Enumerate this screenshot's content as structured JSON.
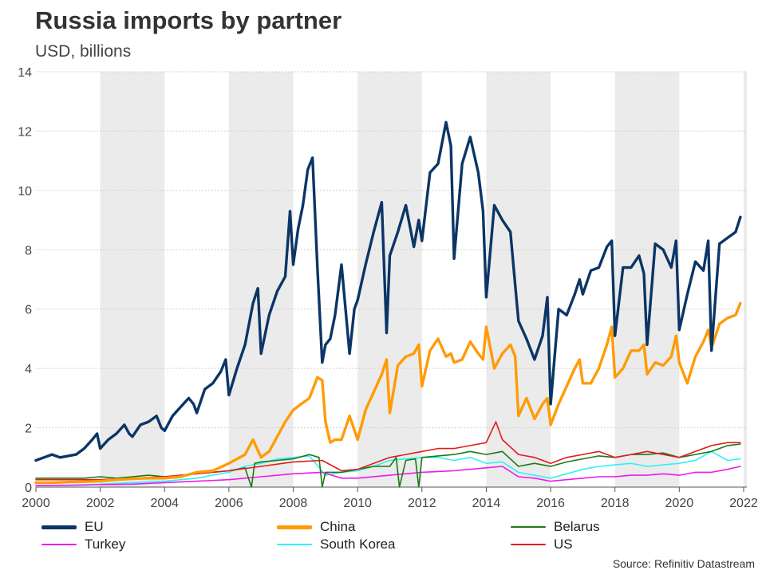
{
  "header": {
    "title": "Russia imports by partner",
    "subtitle": "USD, billions"
  },
  "source": "Source: Refinitiv Datastream",
  "colors": {
    "EU": "#0b3566",
    "China": "#ff9b05",
    "Belarus": "#1a7a12",
    "Turkey": "#ee18ee",
    "South Korea": "#2ef2f5",
    "US": "#e31a1c",
    "shade": "#ebebeb",
    "grid": "#d0d0d0"
  },
  "chart_data": {
    "type": "line",
    "title": "Russia imports by partner",
    "subtitle": "USD, billions",
    "xlabel": "",
    "ylabel": "",
    "xlim": [
      2000,
      2022.1
    ],
    "ylim": [
      0,
      14
    ],
    "yticks": [
      0,
      2,
      4,
      6,
      8,
      10,
      12,
      14
    ],
    "xticks": [
      2000,
      2002,
      2004,
      2006,
      2008,
      2010,
      2012,
      2014,
      2016,
      2018,
      2020,
      2022
    ],
    "shaded_bands": [
      [
        2002,
        2004
      ],
      [
        2006,
        2008
      ],
      [
        2010,
        2012
      ],
      [
        2014,
        2016
      ],
      [
        2018,
        2020
      ],
      [
        2022,
        2022.1
      ]
    ],
    "legend_position": "bottom",
    "series": [
      {
        "name": "EU",
        "x": [
          2000.0,
          2000.25,
          2000.5,
          2000.75,
          2001.0,
          2001.25,
          2001.5,
          2001.75,
          2001.9,
          2002.0,
          2002.25,
          2002.5,
          2002.75,
          2002.9,
          2003.0,
          2003.25,
          2003.5,
          2003.75,
          2003.9,
          2004.0,
          2004.25,
          2004.5,
          2004.75,
          2004.9,
          2005.0,
          2005.25,
          2005.5,
          2005.75,
          2005.9,
          2006.0,
          2006.25,
          2006.5,
          2006.75,
          2006.9,
          2007.0,
          2007.25,
          2007.5,
          2007.75,
          2007.9,
          2008.0,
          2008.15,
          2008.3,
          2008.45,
          2008.6,
          2008.75,
          2008.9,
          2009.0,
          2009.15,
          2009.3,
          2009.5,
          2009.75,
          2009.9,
          2010.0,
          2010.25,
          2010.5,
          2010.75,
          2010.9,
          2011.0,
          2011.25,
          2011.5,
          2011.75,
          2011.9,
          2012.0,
          2012.25,
          2012.5,
          2012.75,
          2012.9,
          2013.0,
          2013.25,
          2013.5,
          2013.75,
          2013.9,
          2014.0,
          2014.25,
          2014.5,
          2014.75,
          2014.9,
          2015.0,
          2015.25,
          2015.5,
          2015.75,
          2015.9,
          2016.0,
          2016.25,
          2016.5,
          2016.75,
          2016.9,
          2017.0,
          2017.25,
          2017.5,
          2017.75,
          2017.9,
          2018.0,
          2018.25,
          2018.5,
          2018.75,
          2018.9,
          2019.0,
          2019.25,
          2019.5,
          2019.75,
          2019.9,
          2020.0,
          2020.25,
          2020.5,
          2020.75,
          2020.9,
          2021.0,
          2021.25,
          2021.5,
          2021.75,
          2021.9
        ],
        "values": [
          0.9,
          1.0,
          1.1,
          1.0,
          1.05,
          1.1,
          1.3,
          1.6,
          1.8,
          1.3,
          1.6,
          1.8,
          2.1,
          1.8,
          1.7,
          2.1,
          2.2,
          2.4,
          2.0,
          1.9,
          2.4,
          2.7,
          3.0,
          2.8,
          2.5,
          3.3,
          3.5,
          3.9,
          4.3,
          3.1,
          4.0,
          4.8,
          6.2,
          6.7,
          4.5,
          5.8,
          6.6,
          7.1,
          9.3,
          7.5,
          8.7,
          9.5,
          10.7,
          11.1,
          7.4,
          4.2,
          4.8,
          5.0,
          5.8,
          7.5,
          4.5,
          6.0,
          6.3,
          7.5,
          8.6,
          9.6,
          5.2,
          7.8,
          8.6,
          9.5,
          8.1,
          9.0,
          8.3,
          10.6,
          10.9,
          12.3,
          11.5,
          7.7,
          10.9,
          11.8,
          10.6,
          9.3,
          6.4,
          9.5,
          9.0,
          8.6,
          6.8,
          5.6,
          5.0,
          4.3,
          5.1,
          6.4,
          2.8,
          6.0,
          5.8,
          6.5,
          7.0,
          6.5,
          7.3,
          7.4,
          8.1,
          8.3,
          5.1,
          7.4,
          7.4,
          7.8,
          7.2,
          4.8,
          8.2,
          8.0,
          7.4,
          8.3,
          5.3,
          6.5,
          7.6,
          7.3,
          8.3,
          4.6,
          8.2,
          8.4,
          8.6,
          9.1
        ]
      },
      {
        "name": "China",
        "x": [
          2000.0,
          2000.5,
          2001.0,
          2001.5,
          2002.0,
          2002.5,
          2003.0,
          2003.5,
          2004.0,
          2004.5,
          2005.0,
          2005.5,
          2006.0,
          2006.5,
          2006.75,
          2007.0,
          2007.25,
          2007.5,
          2007.75,
          2008.0,
          2008.25,
          2008.5,
          2008.75,
          2008.9,
          2009.0,
          2009.15,
          2009.3,
          2009.5,
          2009.75,
          2010.0,
          2010.25,
          2010.5,
          2010.75,
          2010.9,
          2011.0,
          2011.25,
          2011.5,
          2011.75,
          2011.9,
          2012.0,
          2012.25,
          2012.5,
          2012.75,
          2012.9,
          2013.0,
          2013.25,
          2013.5,
          2013.75,
          2013.9,
          2014.0,
          2014.25,
          2014.5,
          2014.75,
          2014.9,
          2015.0,
          2015.25,
          2015.5,
          2015.75,
          2015.9,
          2016.0,
          2016.25,
          2016.5,
          2016.75,
          2016.9,
          2017.0,
          2017.25,
          2017.5,
          2017.75,
          2017.9,
          2018.0,
          2018.25,
          2018.5,
          2018.75,
          2018.9,
          2019.0,
          2019.25,
          2019.5,
          2019.75,
          2019.9,
          2020.0,
          2020.25,
          2020.5,
          2020.75,
          2020.9,
          2021.0,
          2021.25,
          2021.5,
          2021.75,
          2021.9
        ],
        "values": [
          0.15,
          0.15,
          0.17,
          0.18,
          0.2,
          0.25,
          0.28,
          0.3,
          0.3,
          0.35,
          0.5,
          0.55,
          0.8,
          1.1,
          1.6,
          1.0,
          1.2,
          1.7,
          2.2,
          2.6,
          2.8,
          3.0,
          3.7,
          3.6,
          2.2,
          1.5,
          1.6,
          1.6,
          2.4,
          1.6,
          2.6,
          3.2,
          3.8,
          4.3,
          2.5,
          4.1,
          4.4,
          4.5,
          4.8,
          3.4,
          4.6,
          5.0,
          4.4,
          4.5,
          4.2,
          4.3,
          4.9,
          4.5,
          4.3,
          5.4,
          4.0,
          4.5,
          4.8,
          4.4,
          2.4,
          3.0,
          2.3,
          2.8,
          3.0,
          2.1,
          2.8,
          3.4,
          4.0,
          4.3,
          3.5,
          3.5,
          4.0,
          4.8,
          5.4,
          3.7,
          4.0,
          4.6,
          4.6,
          4.8,
          3.8,
          4.2,
          4.1,
          4.4,
          5.1,
          4.2,
          3.5,
          4.4,
          4.9,
          5.3,
          4.7,
          5.5,
          5.7,
          5.8,
          6.2
        ]
      },
      {
        "name": "Belarus",
        "x": [
          2000.0,
          2000.5,
          2001.0,
          2001.5,
          2002.0,
          2002.5,
          2003.0,
          2003.5,
          2004.0,
          2004.5,
          2005.0,
          2005.5,
          2006.0,
          2006.5,
          2006.7,
          2006.8,
          2007.0,
          2007.5,
          2008.0,
          2008.5,
          2008.8,
          2008.9,
          2009.0,
          2009.5,
          2010.0,
          2010.5,
          2011.0,
          2011.2,
          2011.3,
          2011.5,
          2011.8,
          2011.9,
          2012.0,
          2012.5,
          2013.0,
          2013.5,
          2014.0,
          2014.5,
          2015.0,
          2015.5,
          2016.0,
          2016.5,
          2017.0,
          2017.5,
          2018.0,
          2018.5,
          2019.0,
          2019.5,
          2020.0,
          2020.5,
          2021.0,
          2021.5,
          2021.9
        ],
        "values": [
          0.3,
          0.3,
          0.3,
          0.3,
          0.35,
          0.3,
          0.35,
          0.4,
          0.35,
          0.4,
          0.45,
          0.5,
          0.55,
          0.65,
          0.0,
          0.8,
          0.85,
          0.9,
          0.95,
          1.1,
          1.0,
          0.0,
          0.5,
          0.5,
          0.6,
          0.7,
          0.7,
          1.0,
          0.0,
          0.9,
          0.95,
          0.0,
          1.0,
          1.05,
          1.1,
          1.2,
          1.1,
          1.2,
          0.7,
          0.8,
          0.7,
          0.85,
          0.95,
          1.05,
          1.0,
          1.1,
          1.1,
          1.15,
          1.0,
          1.1,
          1.2,
          1.4,
          1.45
        ]
      },
      {
        "name": "Turkey",
        "x": [
          2000.0,
          2001.0,
          2002.0,
          2003.0,
          2004.0,
          2005.0,
          2006.0,
          2007.0,
          2008.0,
          2008.9,
          2009.5,
          2010.0,
          2011.0,
          2012.0,
          2013.0,
          2014.0,
          2014.5,
          2015.0,
          2015.5,
          2016.0,
          2016.5,
          2017.0,
          2017.5,
          2018.0,
          2018.5,
          2019.0,
          2019.5,
          2020.0,
          2020.5,
          2021.0,
          2021.5,
          2021.9
        ],
        "values": [
          0.05,
          0.06,
          0.08,
          0.1,
          0.15,
          0.2,
          0.25,
          0.35,
          0.45,
          0.5,
          0.3,
          0.3,
          0.4,
          0.5,
          0.55,
          0.65,
          0.7,
          0.35,
          0.3,
          0.2,
          0.25,
          0.3,
          0.35,
          0.35,
          0.4,
          0.4,
          0.45,
          0.4,
          0.5,
          0.5,
          0.6,
          0.7
        ]
      },
      {
        "name": "South Korea",
        "x": [
          2000.0,
          2001.0,
          2002.0,
          2003.0,
          2004.0,
          2005.0,
          2006.0,
          2006.5,
          2007.0,
          2007.5,
          2008.0,
          2008.5,
          2009.0,
          2009.5,
          2010.0,
          2010.5,
          2011.0,
          2011.5,
          2012.0,
          2012.5,
          2013.0,
          2013.5,
          2014.0,
          2014.5,
          2015.0,
          2015.5,
          2016.0,
          2016.5,
          2017.0,
          2017.5,
          2018.0,
          2018.5,
          2019.0,
          2019.5,
          2020.0,
          2020.5,
          2021.0,
          2021.5,
          2021.9
        ],
        "values": [
          0.05,
          0.07,
          0.1,
          0.15,
          0.2,
          0.3,
          0.5,
          0.7,
          0.8,
          0.95,
          1.0,
          1.05,
          0.4,
          0.5,
          0.55,
          0.7,
          0.9,
          0.95,
          1.0,
          1.0,
          0.9,
          1.0,
          0.8,
          0.85,
          0.5,
          0.4,
          0.3,
          0.45,
          0.6,
          0.7,
          0.75,
          0.8,
          0.7,
          0.75,
          0.8,
          0.9,
          1.2,
          0.9,
          0.95
        ]
      },
      {
        "name": "US",
        "x": [
          2000.0,
          2001.0,
          2002.0,
          2003.0,
          2004.0,
          2005.0,
          2006.0,
          2007.0,
          2008.0,
          2008.9,
          2009.5,
          2010.0,
          2010.5,
          2011.0,
          2011.5,
          2012.0,
          2012.5,
          2013.0,
          2013.5,
          2014.0,
          2014.3,
          2014.5,
          2015.0,
          2015.5,
          2016.0,
          2016.5,
          2017.0,
          2017.5,
          2018.0,
          2018.5,
          2019.0,
          2019.5,
          2020.0,
          2020.5,
          2021.0,
          2021.5,
          2021.9
        ],
        "values": [
          0.25,
          0.25,
          0.25,
          0.3,
          0.35,
          0.45,
          0.55,
          0.7,
          0.85,
          0.9,
          0.55,
          0.6,
          0.8,
          1.0,
          1.1,
          1.2,
          1.3,
          1.3,
          1.4,
          1.5,
          2.2,
          1.6,
          1.1,
          1.0,
          0.8,
          1.0,
          1.1,
          1.2,
          1.0,
          1.1,
          1.2,
          1.1,
          1.0,
          1.2,
          1.4,
          1.5,
          1.5
        ]
      }
    ]
  }
}
